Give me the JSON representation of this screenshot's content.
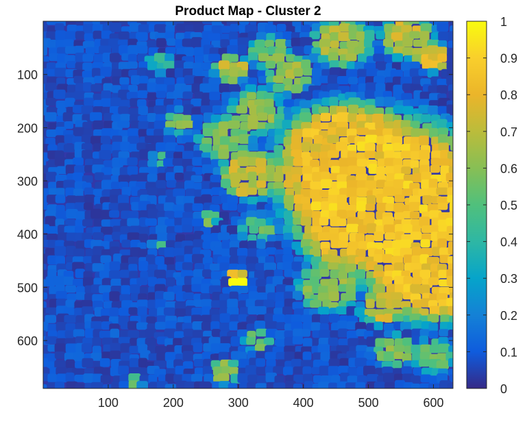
{
  "chart_data": {
    "type": "heatmap",
    "title": "Product Map - Cluster 2",
    "xlabel": "",
    "ylabel": "",
    "xlim": [
      0,
      630
    ],
    "ylim": [
      690,
      0
    ],
    "x_ticks": [
      100,
      200,
      300,
      400,
      500,
      600
    ],
    "y_ticks": [
      100,
      200,
      300,
      400,
      500,
      600
    ],
    "colorbar": {
      "range": [
        0,
        1
      ],
      "ticks": [
        0,
        0.1,
        0.2,
        0.3,
        0.4,
        0.5,
        0.6,
        0.7,
        0.8,
        0.9,
        1
      ],
      "tick_labels": [
        "0",
        "0.1",
        "0.2",
        "0.3",
        "0.4",
        "0.5",
        "0.6",
        "0.7",
        "0.8",
        "0.9",
        "1"
      ],
      "colormap": "parula"
    },
    "regions": [
      {
        "x": 530,
        "y": 330,
        "r": 150,
        "v": 0.85
      },
      {
        "x": 460,
        "y": 250,
        "r": 95,
        "v": 0.82
      },
      {
        "x": 600,
        "y": 470,
        "r": 95,
        "v": 0.85
      },
      {
        "x": 470,
        "y": 390,
        "r": 70,
        "v": 0.8
      },
      {
        "x": 420,
        "y": 310,
        "r": 55,
        "v": 0.78
      },
      {
        "x": 380,
        "y": 100,
        "r": 35,
        "v": 0.62
      },
      {
        "x": 350,
        "y": 60,
        "r": 30,
        "v": 0.55
      },
      {
        "x": 290,
        "y": 90,
        "r": 25,
        "v": 0.7
      },
      {
        "x": 460,
        "y": 40,
        "r": 45,
        "v": 0.65
      },
      {
        "x": 560,
        "y": 30,
        "r": 40,
        "v": 0.7
      },
      {
        "x": 600,
        "y": 70,
        "r": 25,
        "v": 0.78
      },
      {
        "x": 330,
        "y": 170,
        "r": 40,
        "v": 0.58
      },
      {
        "x": 280,
        "y": 220,
        "r": 40,
        "v": 0.55
      },
      {
        "x": 320,
        "y": 290,
        "r": 45,
        "v": 0.7
      },
      {
        "x": 210,
        "y": 190,
        "r": 22,
        "v": 0.55
      },
      {
        "x": 180,
        "y": 260,
        "r": 12,
        "v": 0.5
      },
      {
        "x": 255,
        "y": 370,
        "r": 14,
        "v": 0.55
      },
      {
        "x": 300,
        "y": 485,
        "r": 14,
        "v": 1.0
      },
      {
        "x": 440,
        "y": 500,
        "r": 45,
        "v": 0.6
      },
      {
        "x": 520,
        "y": 540,
        "r": 30,
        "v": 0.7
      },
      {
        "x": 540,
        "y": 620,
        "r": 30,
        "v": 0.6
      },
      {
        "x": 600,
        "y": 630,
        "r": 30,
        "v": 0.55
      },
      {
        "x": 280,
        "y": 660,
        "r": 22,
        "v": 0.6
      },
      {
        "x": 330,
        "y": 600,
        "r": 20,
        "v": 0.5
      },
      {
        "x": 330,
        "y": 390,
        "r": 25,
        "v": 0.5
      },
      {
        "x": 180,
        "y": 420,
        "r": 10,
        "v": 0.45
      },
      {
        "x": 180,
        "y": 80,
        "r": 18,
        "v": 0.4
      },
      {
        "x": 140,
        "y": 680,
        "r": 12,
        "v": 0.6
      }
    ],
    "background_value": 0.08
  }
}
